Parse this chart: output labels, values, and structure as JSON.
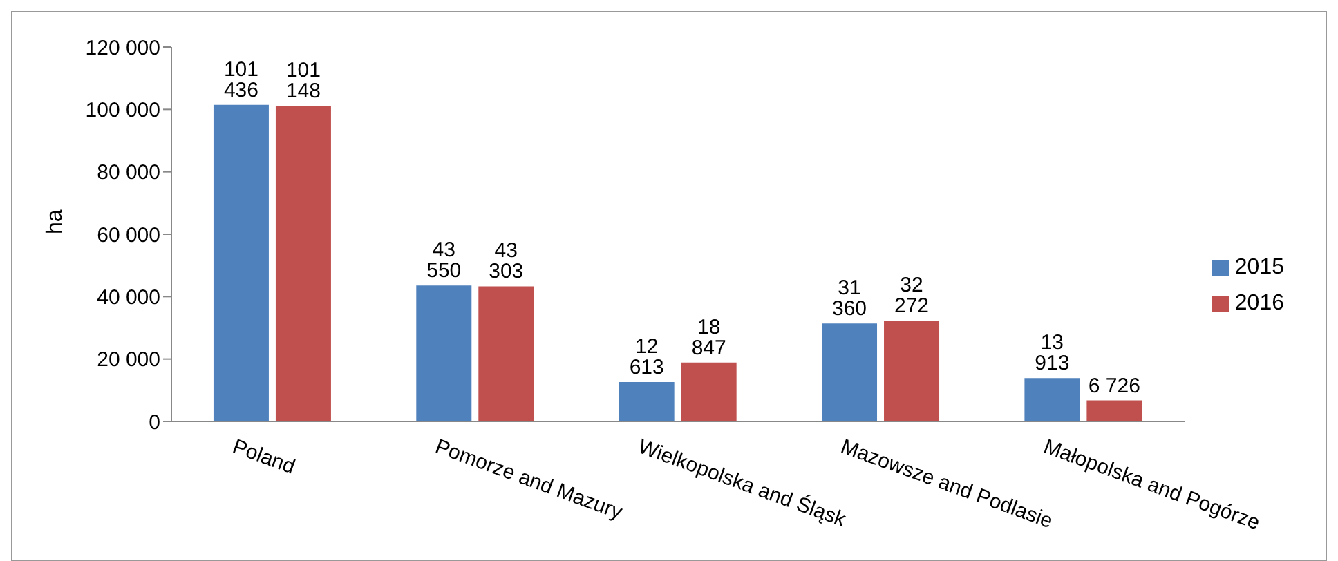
{
  "chart_data": {
    "type": "bar",
    "ylabel": "ha",
    "categories": [
      "Poland",
      "Pomorze and Mazury",
      "Wielkopolska and Śląsk",
      "Mazowsze and Podlasie",
      "Małopolska and Pogórze"
    ],
    "series": [
      {
        "name": "2015",
        "color": "#4f81bd",
        "values": [
          101436,
          43550,
          12613,
          31360,
          13913
        ],
        "value_labels": [
          "101 436",
          "43 550",
          "12 613",
          "31 360",
          "13 913"
        ]
      },
      {
        "name": "2016",
        "color": "#c0504d",
        "values": [
          101148,
          43303,
          18847,
          32272,
          6726
        ],
        "value_labels": [
          "101 148",
          "43 303",
          "18 847",
          "32 272",
          "6 726"
        ]
      }
    ],
    "ylim": [
      0,
      120000
    ],
    "yticks": [
      {
        "value": 0,
        "label": "0"
      },
      {
        "value": 20000,
        "label": "20 000"
      },
      {
        "value": 40000,
        "label": "40 000"
      },
      {
        "value": 60000,
        "label": "60 000"
      },
      {
        "value": 80000,
        "label": "80 000"
      },
      {
        "value": 100000,
        "label": "100 000"
      },
      {
        "value": 120000,
        "label": "120 000"
      }
    ],
    "grid": false,
    "legend": "right"
  }
}
